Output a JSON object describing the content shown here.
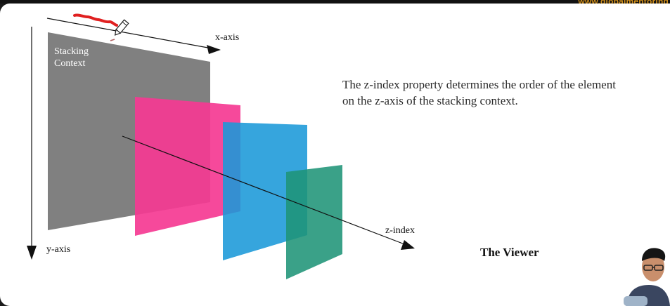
{
  "watermark": "www.globalmentoring",
  "labels": {
    "x_axis": "x-axis",
    "y_axis": "y-axis",
    "z_index": "z-index",
    "stacking_context": "Stacking Context"
  },
  "description": "The z-index property determines the order of the element on the z-axis of the stacking context.",
  "viewer": "The Viewer",
  "colors": {
    "stacking_context": "#808080",
    "layer_pink": "#f53a92",
    "layer_blue": "#1a98d8",
    "layer_green": "#1f9478",
    "annotation_stroke": "#e02020"
  },
  "icons": [
    "pencil-cursor-icon",
    "presenter-webcam"
  ]
}
